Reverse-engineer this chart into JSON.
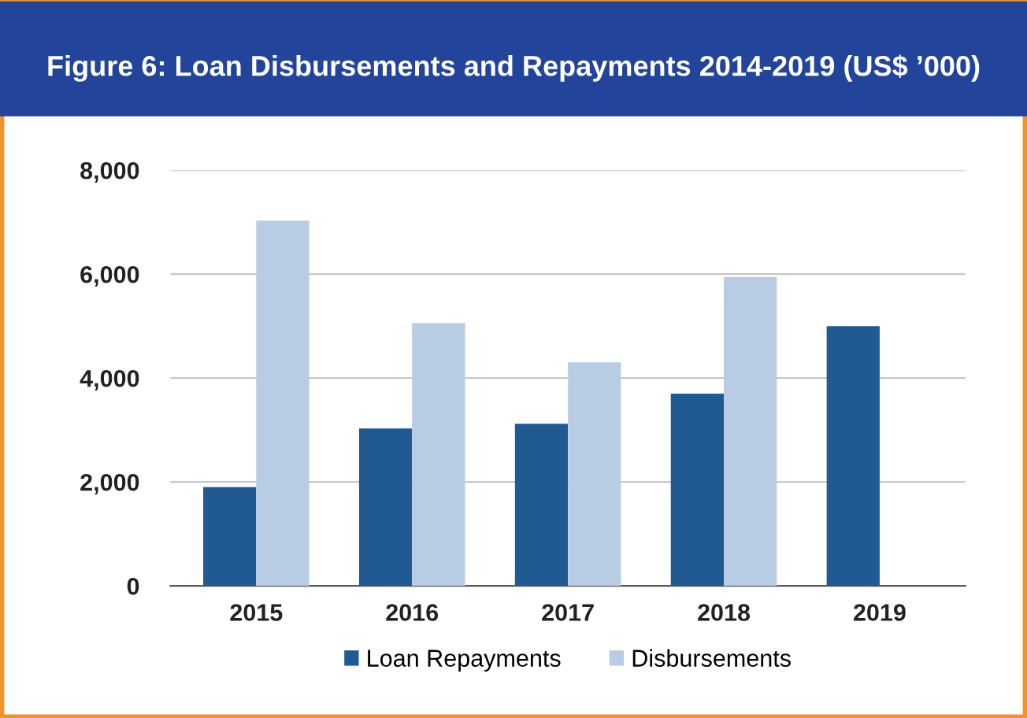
{
  "chart_data": {
    "type": "bar",
    "title": "Figure 6: Loan Disbursements and Repayments 2014-2019 (US$ ’000)",
    "categories": [
      "2015",
      "2016",
      "2017",
      "2018",
      "2019"
    ],
    "series": [
      {
        "name": "Loan Repayments",
        "color": "#1f5a93",
        "values": [
          1900,
          3030,
          3120,
          3700,
          5000
        ]
      },
      {
        "name": "Disbursements",
        "color": "#b8cce4",
        "values": [
          7030,
          5060,
          4300,
          5940,
          null
        ]
      }
    ],
    "ylim": [
      0,
      8000
    ],
    "yticks": [
      {
        "value": 0,
        "label": "0"
      },
      {
        "value": 2000,
        "label": "2,000"
      },
      {
        "value": 4000,
        "label": "4,000"
      },
      {
        "value": 6000,
        "label": "6,000"
      },
      {
        "value": 8000,
        "label": "8,000"
      }
    ],
    "grid": "y",
    "legend": "bottom"
  }
}
